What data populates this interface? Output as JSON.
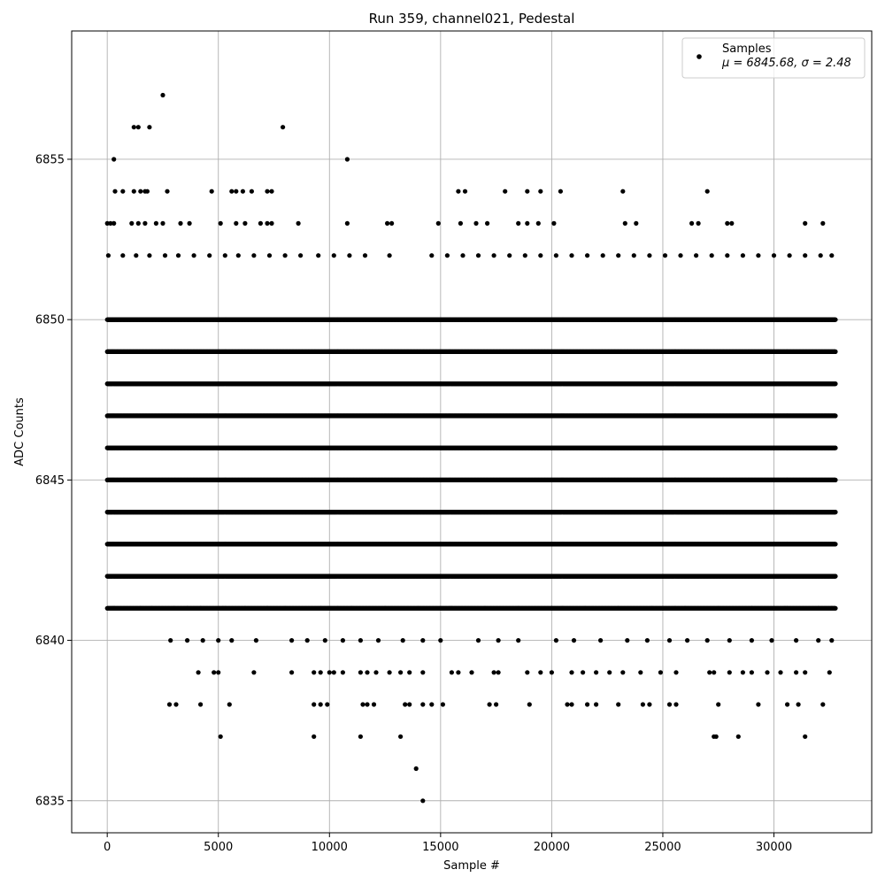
{
  "chart_data": {
    "type": "scatter",
    "title": "Run 359, channel021, Pedestal",
    "xlabel": "Sample #",
    "ylabel": "ADC Counts",
    "xlim": [
      -1600,
      34400
    ],
    "ylim": [
      6834,
      6859
    ],
    "xticks": [
      0,
      5000,
      10000,
      15000,
      20000,
      25000,
      30000
    ],
    "yticks": [
      6835,
      6840,
      6845,
      6850,
      6855
    ],
    "grid": true,
    "legend": {
      "placement": "top-right",
      "label": "Samples",
      "stats_label": "μ = 6845.68, σ = 2.48"
    },
    "series": [
      {
        "name": "Samples",
        "color": "#000000",
        "marker": "circle",
        "x_range": [
          0,
          32768
        ],
        "mean": 6845.68,
        "std": 2.48,
        "levels": [
          {
            "y": 6841,
            "x": [
              320,
              1500,
              2000,
              3000,
              3600,
              4200,
              5200,
              6200,
              7200,
              8000,
              9600,
              11000,
              12500,
              14000,
              15500,
              17000,
              18500,
              20000,
              21500,
              23000,
              24500,
              26000,
              27500,
              29000,
              30500,
              32000,
              32600
            ]
          },
          {
            "y": 6840,
            "x": [
              2850,
              3600,
              4300,
              5000,
              5600,
              6700,
              8300,
              9000,
              9800,
              10600,
              11400,
              12200,
              13300,
              14200,
              15000,
              16700,
              17600,
              18500,
              20200,
              21000,
              22200,
              23400,
              24300,
              25300,
              26100,
              27000,
              28000,
              29000,
              29900,
              31000,
              32000,
              32600
            ]
          },
          {
            "y": 6839,
            "x": [
              4100,
              4800,
              5000,
              6600,
              8300,
              9300,
              9600,
              10000,
              10200,
              10600,
              11400,
              11700,
              12100,
              12700,
              13200,
              13600,
              14200,
              15500,
              15800,
              16400,
              17400,
              17600,
              18900,
              19500,
              20000,
              20900,
              21400,
              22000,
              22600,
              23200,
              24000,
              24900,
              25600,
              27100,
              27300,
              28000,
              28600,
              29000,
              29700,
              30300,
              31000,
              31400,
              32500
            ]
          },
          {
            "y": 6838,
            "x": [
              2800,
              3100,
              4200,
              5500,
              9300,
              9600,
              9900,
              11500,
              11700,
              12000,
              13400,
              13600,
              14200,
              14600,
              15100,
              17200,
              17500,
              19000,
              20700,
              20900,
              21600,
              22000,
              23000,
              24100,
              24400,
              25300,
              25600,
              27500,
              29300,
              30600,
              31100,
              32200
            ]
          },
          {
            "y": 6837,
            "x": [
              5100,
              9300,
              11400,
              13200,
              27300,
              27400,
              28400,
              31400
            ]
          },
          {
            "y": 6836,
            "x": [
              13900
            ]
          },
          {
            "y": 6835,
            "x": [
              14200
            ]
          },
          {
            "y": 6852,
            "x": [
              50,
              700,
              1300,
              1900,
              2600,
              3200,
              3900,
              4600,
              5300,
              5900,
              6600,
              7300,
              8000,
              8700,
              9500,
              10200,
              10900,
              11600,
              12700,
              14600,
              15300,
              16000,
              16700,
              17400,
              18100,
              18800,
              19500,
              20200,
              20900,
              21600,
              22300,
              23000,
              23700,
              24400,
              25100,
              25800,
              26500,
              27200,
              27900,
              28600,
              29300,
              30000,
              30700,
              31400,
              32100,
              32600
            ]
          },
          {
            "y": 6853,
            "x": [
              0,
              150,
              300,
              1100,
              1400,
              1700,
              2200,
              2500,
              3300,
              3700,
              5100,
              5800,
              6200,
              6900,
              7200,
              7400,
              8600,
              10800,
              12600,
              12800,
              14900,
              15900,
              16600,
              17100,
              18500,
              18900,
              19400,
              20100,
              23300,
              23800,
              26300,
              26600,
              27900,
              28100,
              31400,
              32200
            ]
          },
          {
            "y": 6854,
            "x": [
              350,
              700,
              1200,
              1500,
              1700,
              1800,
              2700,
              4700,
              5600,
              5800,
              6100,
              6500,
              7200,
              7400,
              15800,
              16100,
              17900,
              18900,
              19500,
              20400,
              23200,
              27000
            ]
          },
          {
            "y": 6855,
            "x": [
              300,
              10800
            ]
          },
          {
            "y": 6856,
            "x": [
              1200,
              1400,
              1900,
              7900
            ]
          },
          {
            "y": 6857,
            "x": [
              2500
            ]
          }
        ]
      }
    ]
  }
}
